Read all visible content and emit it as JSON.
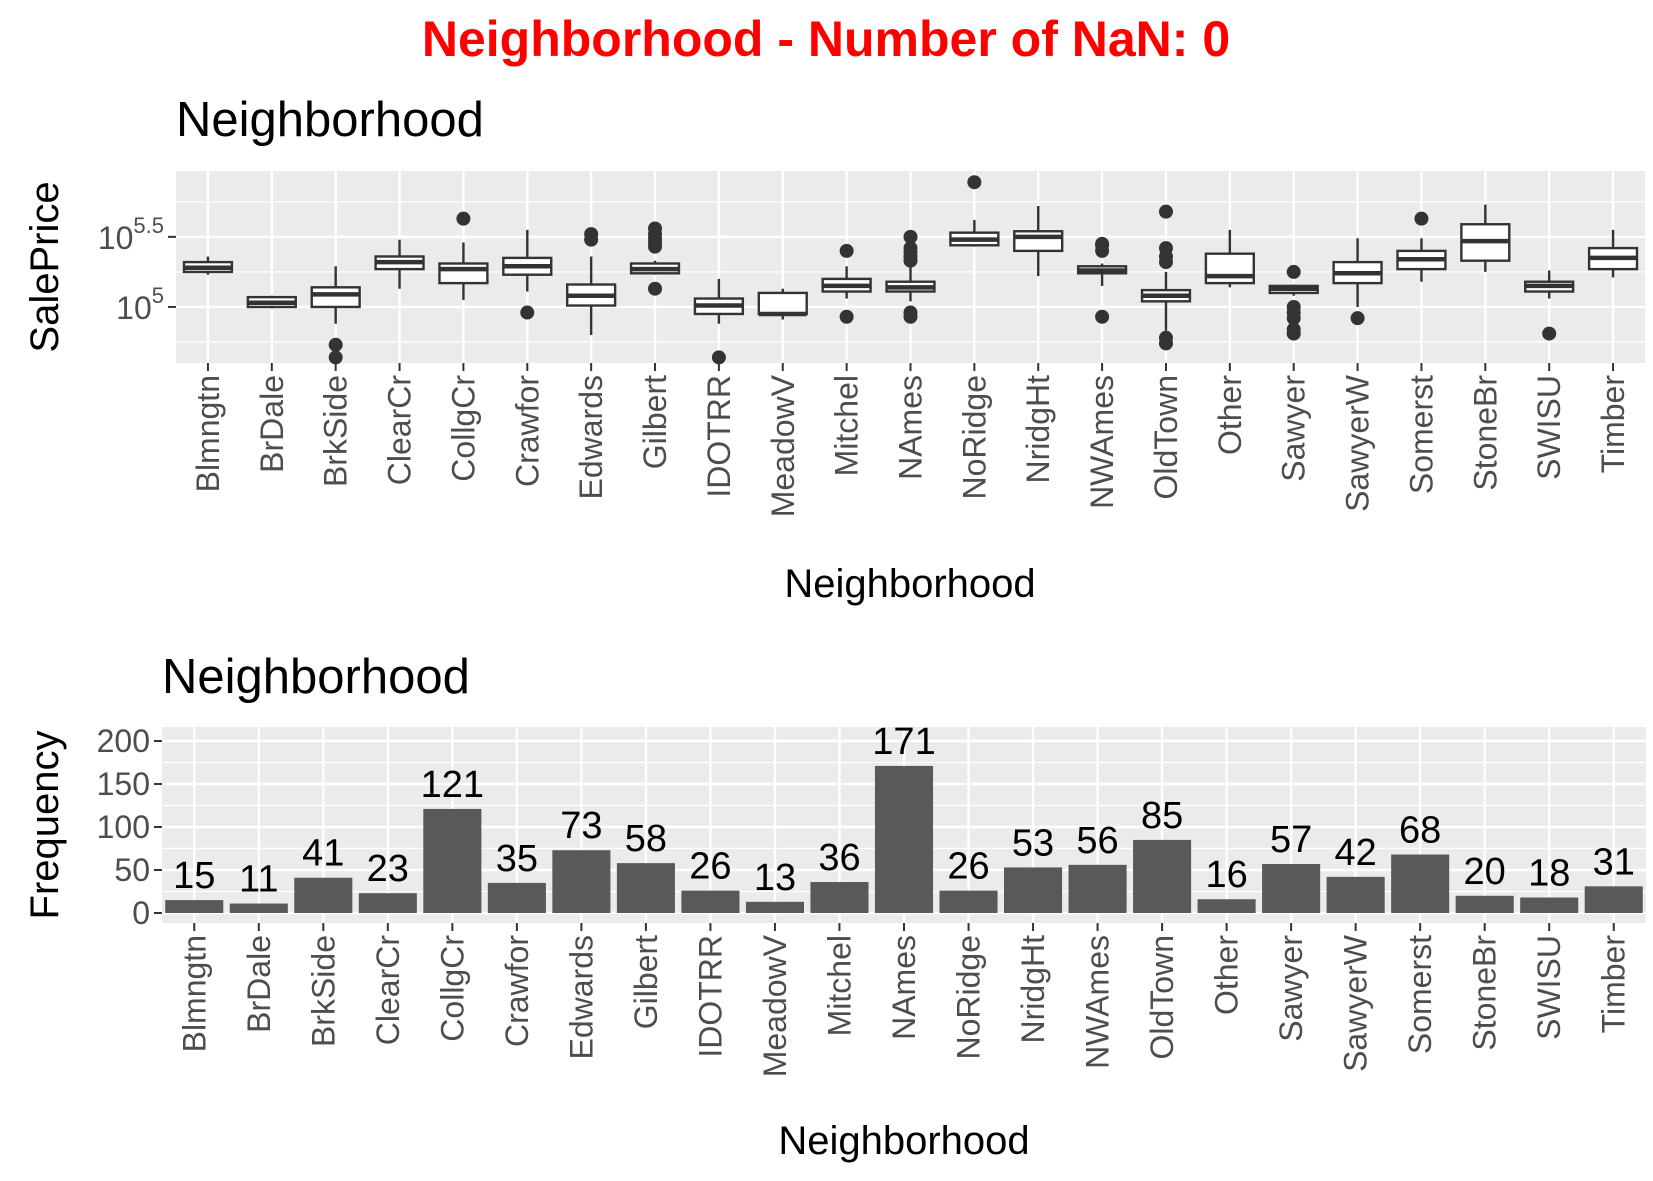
{
  "main_title": "Neighborhood - Number of NaN: 0",
  "colors": {
    "title": "#ff0000",
    "panel_background": "#ebebeb",
    "grid": "#ffffff",
    "bar_fill": "#595959",
    "box_outline": "#333333",
    "box_fill": "#ffffff",
    "outlier": "#333333",
    "tick_text": "#4d4d4d"
  },
  "chart_data": [
    {
      "type": "boxplot",
      "title": "Neighborhood",
      "xlabel": "Neighborhood",
      "ylabel": "SalePrice",
      "yscale": "log10",
      "ylim_log10": [
        4.6,
        5.97
      ],
      "yticks": [
        {
          "value_log10": 5.0,
          "base": "10",
          "exp": "5"
        },
        {
          "value_log10": 5.5,
          "base": "10",
          "exp": "5.5"
        }
      ],
      "grid": true,
      "categories": [
        "Blmngtn",
        "BrDale",
        "BrkSide",
        "ClearCr",
        "CollgCr",
        "Crawfor",
        "Edwards",
        "Gilbert",
        "IDOTRR",
        "MeadowV",
        "Mitchel",
        "NAmes",
        "NoRidge",
        "NridgHt",
        "NWAmes",
        "OldTown",
        "Other",
        "Sawyer",
        "SawyerW",
        "Somerst",
        "StoneBr",
        "SWISU",
        "Timber"
      ],
      "boxes_log10": [
        {
          "min": 5.23,
          "q1": 5.25,
          "median": 5.28,
          "q3": 5.32,
          "max": 5.36,
          "outliers": []
        },
        {
          "min": 4.99,
          "q1": 5.0,
          "median": 5.03,
          "q3": 5.07,
          "max": 5.08,
          "outliers": []
        },
        {
          "min": 4.88,
          "q1": 5.0,
          "median": 5.09,
          "q3": 5.14,
          "max": 5.29,
          "outliers": [
            4.73,
            4.64
          ]
        },
        {
          "min": 5.13,
          "q1": 5.27,
          "median": 5.32,
          "q3": 5.36,
          "max": 5.48,
          "outliers": []
        },
        {
          "min": 5.05,
          "q1": 5.17,
          "median": 5.27,
          "q3": 5.31,
          "max": 5.46,
          "outliers": [
            5.63
          ]
        },
        {
          "min": 5.11,
          "q1": 5.23,
          "median": 5.29,
          "q3": 5.35,
          "max": 5.55,
          "outliers": [
            4.96
          ]
        },
        {
          "min": 4.8,
          "q1": 5.01,
          "median": 5.08,
          "q3": 5.16,
          "max": 5.36,
          "outliers": [
            5.48,
            5.52
          ]
        },
        {
          "min": 5.23,
          "q1": 5.24,
          "median": 5.27,
          "q3": 5.31,
          "max": 5.33,
          "outliers": [
            5.43,
            5.46,
            5.49,
            5.52,
            5.56,
            5.13
          ]
        },
        {
          "min": 4.88,
          "q1": 4.95,
          "median": 5.01,
          "q3": 5.06,
          "max": 5.2,
          "outliers": [
            4.64
          ]
        },
        {
          "min": 4.91,
          "q1": 4.95,
          "median": 4.95,
          "q3": 5.1,
          "max": 5.13,
          "outliers": []
        },
        {
          "min": 5.06,
          "q1": 5.11,
          "median": 5.15,
          "q3": 5.2,
          "max": 5.29,
          "outliers": [
            5.4,
            4.93
          ]
        },
        {
          "min": 5.04,
          "q1": 5.11,
          "median": 5.14,
          "q3": 5.18,
          "max": 5.3,
          "outliers": [
            5.33,
            5.36,
            5.39,
            5.42,
            5.5,
            4.96,
            4.93
          ]
        },
        {
          "min": 5.43,
          "q1": 5.44,
          "median": 5.48,
          "q3": 5.53,
          "max": 5.62,
          "outliers": [
            5.89
          ]
        },
        {
          "min": 5.22,
          "q1": 5.4,
          "median": 5.5,
          "q3": 5.54,
          "max": 5.72,
          "outliers": []
        },
        {
          "min": 5.15,
          "q1": 5.24,
          "median": 5.26,
          "q3": 5.29,
          "max": 5.31,
          "outliers": [
            5.4,
            5.44,
            5.45,
            4.93
          ]
        },
        {
          "min": 4.83,
          "q1": 5.04,
          "median": 5.08,
          "q3": 5.12,
          "max": 5.25,
          "outliers": [
            5.32,
            5.36,
            5.42,
            5.68,
            4.78,
            4.74
          ]
        },
        {
          "min": 5.14,
          "q1": 5.17,
          "median": 5.22,
          "q3": 5.38,
          "max": 5.55,
          "outliers": []
        },
        {
          "min": 5.08,
          "q1": 5.1,
          "median": 5.13,
          "q3": 5.15,
          "max": 5.16,
          "outliers": [
            5.25,
            5.0,
            4.96,
            4.92,
            4.84,
            4.81
          ]
        },
        {
          "min": 5.0,
          "q1": 5.17,
          "median": 5.24,
          "q3": 5.32,
          "max": 5.49,
          "outliers": [
            4.92
          ]
        },
        {
          "min": 5.18,
          "q1": 5.27,
          "median": 5.34,
          "q3": 5.4,
          "max": 5.49,
          "outliers": [
            5.63
          ]
        },
        {
          "min": 5.25,
          "q1": 5.33,
          "median": 5.47,
          "q3": 5.59,
          "max": 5.73,
          "outliers": []
        },
        {
          "min": 5.06,
          "q1": 5.11,
          "median": 5.15,
          "q3": 5.18,
          "max": 5.26,
          "outliers": [
            4.81
          ]
        },
        {
          "min": 5.21,
          "q1": 5.27,
          "median": 5.35,
          "q3": 5.42,
          "max": 5.55,
          "outliers": []
        }
      ]
    },
    {
      "type": "bar",
      "title": "Neighborhood",
      "xlabel": "Neighborhood",
      "ylabel": "Frequency",
      "ylim": [
        0,
        200
      ],
      "yticks": [
        "0",
        "50",
        "100",
        "150",
        "200"
      ],
      "grid": true,
      "categories": [
        "Blmngtn",
        "BrDale",
        "BrkSide",
        "ClearCr",
        "CollgCr",
        "Crawfor",
        "Edwards",
        "Gilbert",
        "IDOTRR",
        "MeadowV",
        "Mitchel",
        "NAmes",
        "NoRidge",
        "NridgHt",
        "NWAmes",
        "OldTown",
        "Other",
        "Sawyer",
        "SawyerW",
        "Somerst",
        "StoneBr",
        "SWISU",
        "Timber"
      ],
      "values": [
        15,
        11,
        41,
        23,
        121,
        35,
        73,
        58,
        26,
        13,
        36,
        171,
        26,
        53,
        56,
        85,
        16,
        57,
        42,
        68,
        20,
        18,
        31
      ]
    }
  ]
}
